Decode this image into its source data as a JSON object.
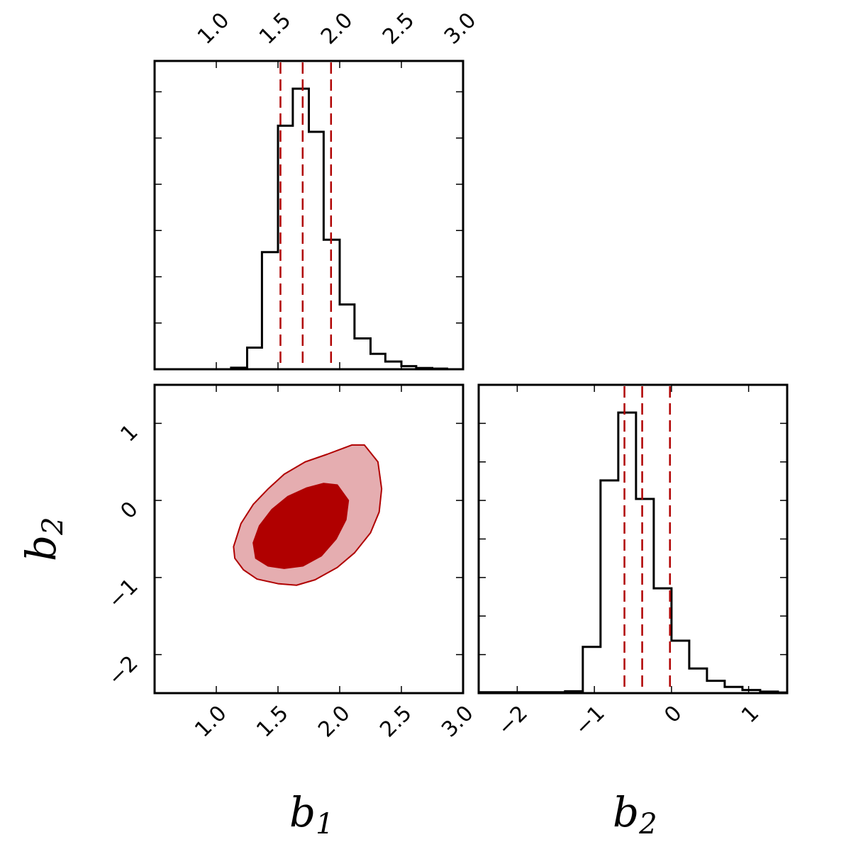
{
  "colors": {
    "accent": "#b00000",
    "contour_outer_fill": "#e5adb0",
    "contour_inner_fill": "#b00000",
    "histogram_line": "#000000",
    "quantile_line": "#b00000"
  },
  "axis_labels": {
    "b1": {
      "main": "b",
      "sub": "1"
    },
    "b2_y": {
      "main": "b",
      "sub": "2"
    },
    "b2_x": {
      "main": "b",
      "sub": "2"
    }
  },
  "chart_data": [
    {
      "type": "bar",
      "panel": "b1-histogram",
      "xlim": [
        0.5,
        3.0
      ],
      "ylim": [
        0,
        1
      ],
      "top_ticks": [
        "1.0",
        "1.5",
        "2.0",
        "2.5",
        "3.0"
      ],
      "top_tick_values": [
        1.0,
        1.5,
        2.0,
        2.5,
        3.0
      ],
      "y_tick_values": [
        0.15,
        0.3,
        0.45,
        0.6,
        0.75,
        0.9
      ],
      "bin_edges": [
        1.12,
        1.25,
        1.37,
        1.5,
        1.62,
        1.75,
        1.87,
        2.0,
        2.12,
        2.25,
        2.37,
        2.5,
        2.62,
        2.75,
        2.87
      ],
      "counts": [
        0.005,
        0.07,
        0.38,
        0.79,
        0.91,
        0.77,
        0.42,
        0.21,
        0.1,
        0.05,
        0.025,
        0.01,
        0.004,
        0.002
      ],
      "quantiles": [
        1.52,
        1.7,
        1.93
      ],
      "grid": false
    },
    {
      "type": "bar",
      "panel": "b2-histogram",
      "xlim": [
        -2.5,
        1.5
      ],
      "ylim": [
        0,
        1
      ],
      "x_ticks": [
        "−2",
        "−1",
        "0",
        "1"
      ],
      "x_tick_values": [
        -2,
        -1,
        0,
        1
      ],
      "y_tick_values": [
        0.125,
        0.25,
        0.375,
        0.5,
        0.625,
        0.75,
        0.875
      ],
      "bin_edges": [
        -2.5,
        -1.38,
        -1.15,
        -0.92,
        -0.69,
        -0.46,
        -0.23,
        0.0,
        0.23,
        0.46,
        0.69,
        0.92,
        1.15,
        1.38,
        1.5
      ],
      "counts": [
        0.003,
        0.006,
        0.15,
        0.69,
        0.91,
        0.63,
        0.34,
        0.17,
        0.08,
        0.04,
        0.02,
        0.01,
        0.005,
        0.002
      ],
      "quantiles": [
        -0.61,
        -0.38,
        -0.02
      ],
      "grid": false
    },
    {
      "type": "scatter",
      "panel": "b1-b2-contour",
      "xlim": [
        0.5,
        3.0
      ],
      "ylim": [
        -2.5,
        1.5
      ],
      "x_ticks": [
        "1.0",
        "1.5",
        "2.0",
        "2.5",
        "3.0"
      ],
      "x_tick_values": [
        1.0,
        1.5,
        2.0,
        2.5,
        3.0
      ],
      "y_ticks": [
        "−2",
        "−1",
        "0",
        "1"
      ],
      "y_tick_values": [
        -2,
        -1,
        0,
        1
      ],
      "contours": [
        {
          "level": "outer",
          "points": [
            [
              1.14,
              -0.6
            ],
            [
              1.15,
              -0.75
            ],
            [
              1.22,
              -0.9
            ],
            [
              1.33,
              -1.02
            ],
            [
              1.5,
              -1.08
            ],
            [
              1.65,
              -1.1
            ],
            [
              1.8,
              -1.03
            ],
            [
              1.98,
              -0.87
            ],
            [
              2.12,
              -0.68
            ],
            [
              2.25,
              -0.42
            ],
            [
              2.32,
              -0.15
            ],
            [
              2.34,
              0.15
            ],
            [
              2.31,
              0.5
            ],
            [
              2.2,
              0.72
            ],
            [
              2.1,
              0.72
            ],
            [
              1.9,
              0.6
            ],
            [
              1.72,
              0.5
            ],
            [
              1.55,
              0.34
            ],
            [
              1.42,
              0.15
            ],
            [
              1.3,
              -0.05
            ],
            [
              1.2,
              -0.3
            ]
          ]
        },
        {
          "level": "inner",
          "points": [
            [
              1.3,
              -0.55
            ],
            [
              1.32,
              -0.75
            ],
            [
              1.42,
              -0.85
            ],
            [
              1.55,
              -0.88
            ],
            [
              1.7,
              -0.85
            ],
            [
              1.85,
              -0.72
            ],
            [
              1.97,
              -0.5
            ],
            [
              2.05,
              -0.25
            ],
            [
              2.07,
              0.0
            ],
            [
              1.98,
              0.2
            ],
            [
              1.87,
              0.22
            ],
            [
              1.73,
              0.16
            ],
            [
              1.58,
              0.05
            ],
            [
              1.45,
              -0.12
            ],
            [
              1.35,
              -0.33
            ]
          ]
        }
      ],
      "grid": false
    }
  ]
}
